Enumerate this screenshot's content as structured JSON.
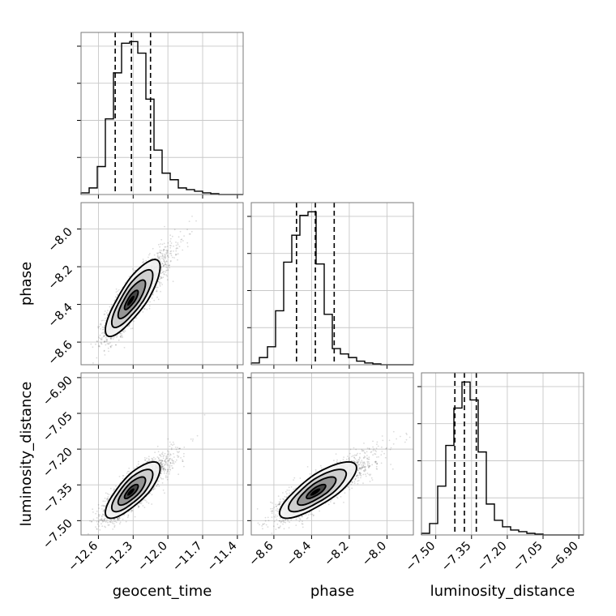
{
  "chart_data": {
    "type": "corner",
    "parameters": [
      {
        "name": "geocent_time",
        "label": "geocent_time",
        "range": [
          -12.75,
          -11.35
        ],
        "ticks": [
          -12.6,
          -12.3,
          -12.0,
          -11.7,
          -11.4
        ],
        "tick_labels": [
          "−12.6",
          "−12.3",
          "−12.0",
          "−11.7",
          "−11.4"
        ],
        "quantiles": [
          -12.455,
          -12.315,
          -12.15
        ]
      },
      {
        "name": "phase",
        "label": "phase",
        "range": [
          -8.72,
          -7.86
        ],
        "ticks": [
          -8.6,
          -8.4,
          -8.2,
          -8.0
        ],
        "tick_labels": [
          "−8.6",
          "−8.4",
          "−8.2",
          "−8.0"
        ],
        "quantiles": [
          -8.48,
          -8.38,
          -8.28
        ]
      },
      {
        "name": "luminosity_distance",
        "label": "luminosity_distance",
        "range": [
          -7.56,
          -6.88
        ],
        "ticks": [
          -7.5,
          -7.35,
          -7.2,
          -7.05,
          -6.9
        ],
        "tick_labels": [
          "−7.50",
          "−7.35",
          "−7.20",
          "−7.05",
          "−6.90"
        ],
        "quantiles": [
          -7.42,
          -7.38,
          -7.33
        ]
      }
    ],
    "histograms": [
      {
        "parameter": "geocent_time",
        "bin_edges": [
          -12.75,
          -12.68,
          -12.61,
          -12.54,
          -12.47,
          -12.4,
          -12.33,
          -12.26,
          -12.19,
          -12.12,
          -12.05,
          -11.98,
          -11.91,
          -11.84,
          -11.77,
          -11.7,
          -11.63,
          -11.56,
          -11.49,
          -11.42,
          -11.35
        ],
        "counts": [
          1,
          4,
          17,
          46,
          74,
          92,
          93,
          86,
          58,
          27,
          13,
          9,
          4,
          3,
          2,
          1,
          0.5,
          0,
          0,
          0
        ]
      },
      {
        "parameter": "phase",
        "bin_edges": [
          -8.72,
          -8.677,
          -8.634,
          -8.591,
          -8.548,
          -8.505,
          -8.462,
          -8.419,
          -8.376,
          -8.333,
          -8.29,
          -8.247,
          -8.204,
          -8.161,
          -8.118,
          -8.075,
          -8.032,
          -7.989,
          -7.946,
          -7.903,
          -7.86
        ],
        "counts": [
          1,
          4,
          10,
          30,
          57,
          72,
          83,
          85,
          56,
          28,
          9,
          6,
          4,
          2,
          1,
          0.5,
          0,
          0,
          0,
          0
        ]
      },
      {
        "parameter": "luminosity_distance",
        "bin_edges": [
          -7.56,
          -7.526,
          -7.492,
          -7.458,
          -7.424,
          -7.39,
          -7.356,
          -7.322,
          -7.288,
          -7.254,
          -7.22,
          -7.186,
          -7.152,
          -7.118,
          -7.084,
          -7.05,
          -7.016,
          -6.982,
          -6.948,
          -6.914,
          -6.88
        ],
        "counts": [
          1,
          7,
          30,
          55,
          78,
          94,
          83,
          51,
          19,
          9,
          5,
          3,
          2,
          1,
          0.5,
          0,
          0,
          0,
          0,
          0
        ]
      }
    ],
    "pairs": [
      {
        "x": "geocent_time",
        "y": "phase",
        "mean": [
          -12.32,
          -8.38
        ],
        "sd": [
          0.11,
          0.095
        ],
        "corr": 0.82
      },
      {
        "x": "geocent_time",
        "y": "luminosity_distance",
        "mean": [
          -12.32,
          -7.38
        ],
        "sd": [
          0.11,
          0.055
        ],
        "corr": 0.78
      },
      {
        "x": "phase",
        "y": "luminosity_distance",
        "mean": [
          -8.38,
          -7.38
        ],
        "sd": [
          0.095,
          0.055
        ],
        "corr": 0.8
      }
    ],
    "grid": true,
    "contour_levels_sigma": [
      0.5,
      1.0,
      1.5,
      2.0
    ]
  }
}
